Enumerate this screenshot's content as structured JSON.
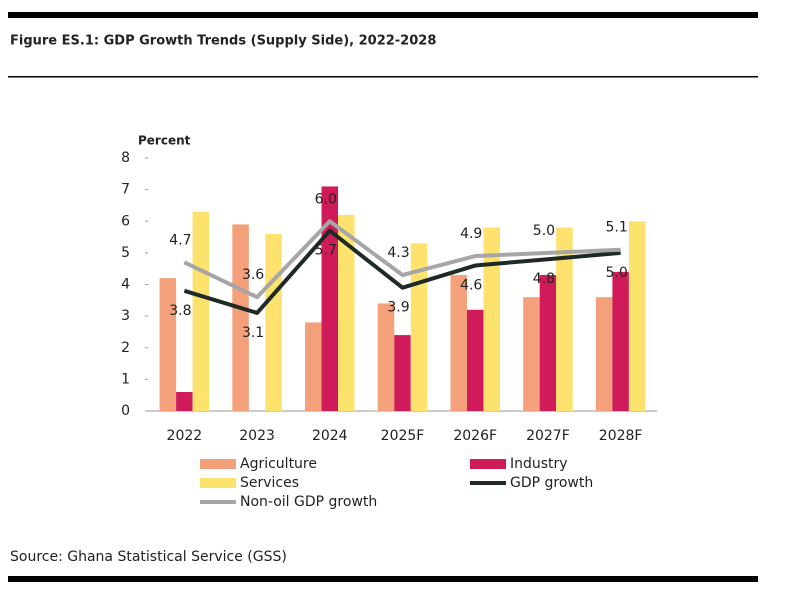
{
  "chart_data": {
    "type": "bar_line",
    "title": "Figure ES.1: GDP Growth Trends (Supply Side), 2022-2028",
    "y_label": "Percent",
    "source": "Source: Ghana Statistical Service (GSS)",
    "categories": [
      "2022",
      "2023",
      "2024",
      "2025F",
      "2026F",
      "2027F",
      "2028F"
    ],
    "ylim": [
      0,
      8
    ],
    "yticks": [
      0,
      1,
      2,
      3,
      4,
      5,
      6,
      7,
      8
    ],
    "series": [
      {
        "name": "Agriculture",
        "kind": "bar",
        "color": "#f4a07a",
        "values": [
          4.2,
          5.9,
          2.8,
          3.4,
          4.3,
          3.6,
          3.6
        ]
      },
      {
        "name": "Industry",
        "kind": "bar",
        "color": "#d01b5a",
        "values": [
          0.6,
          0,
          7.1,
          2.4,
          3.2,
          4.3,
          4.4
        ]
      },
      {
        "name": "Services",
        "kind": "bar",
        "color": "#fde36e",
        "values": [
          6.3,
          5.6,
          6.2,
          5.3,
          5.8,
          5.8,
          6.0
        ]
      },
      {
        "name": "GDP growth",
        "kind": "line",
        "color": "#1f2a26",
        "values": [
          3.8,
          3.1,
          5.7,
          3.9,
          4.6,
          4.8,
          5.0
        ],
        "value_labels": [
          "3.8",
          "3.1",
          "5.7",
          "3.9",
          "4.6",
          "4.8",
          "5.0"
        ]
      },
      {
        "name": "Non-oil GDP growth",
        "kind": "line",
        "color": "#a6a6a6",
        "values": [
          4.7,
          3.6,
          6.0,
          4.3,
          4.9,
          5.0,
          5.1
        ],
        "value_labels": [
          "4.7",
          "3.6",
          "6.0",
          "4.3",
          "4.9",
          "5.0",
          "5.1"
        ]
      }
    ]
  }
}
